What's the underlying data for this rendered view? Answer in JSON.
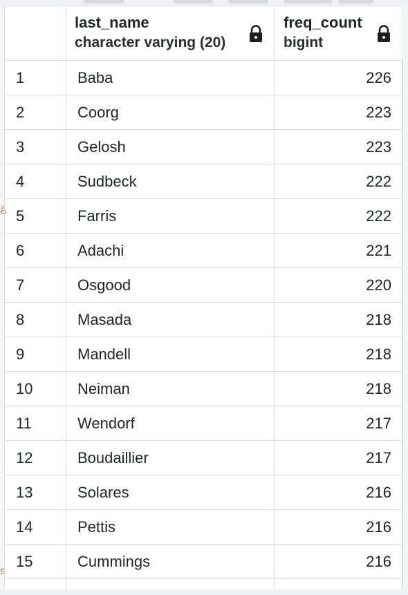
{
  "columns": [
    {
      "name": "",
      "type": ""
    },
    {
      "name": "last_name",
      "type": "character varying (20)",
      "icon": "lock-icon"
    },
    {
      "name": "freq_count",
      "type": "bigint",
      "icon": "lock-icon"
    }
  ],
  "rows": [
    {
      "idx": "1",
      "last_name": "Baba",
      "freq_count": "226"
    },
    {
      "idx": "2",
      "last_name": "Coorg",
      "freq_count": "223"
    },
    {
      "idx": "3",
      "last_name": "Gelosh",
      "freq_count": "223"
    },
    {
      "idx": "4",
      "last_name": "Sudbeck",
      "freq_count": "222"
    },
    {
      "idx": "5",
      "last_name": "Farris",
      "freq_count": "222"
    },
    {
      "idx": "6",
      "last_name": "Adachi",
      "freq_count": "221"
    },
    {
      "idx": "7",
      "last_name": "Osgood",
      "freq_count": "220"
    },
    {
      "idx": "8",
      "last_name": "Masada",
      "freq_count": "218"
    },
    {
      "idx": "9",
      "last_name": "Mandell",
      "freq_count": "218"
    },
    {
      "idx": "10",
      "last_name": "Neiman",
      "freq_count": "218"
    },
    {
      "idx": "11",
      "last_name": "Wendorf",
      "freq_count": "217"
    },
    {
      "idx": "12",
      "last_name": "Boudaillier",
      "freq_count": "217"
    },
    {
      "idx": "13",
      "last_name": "Solares",
      "freq_count": "216"
    },
    {
      "idx": "14",
      "last_name": "Pettis",
      "freq_count": "216"
    },
    {
      "idx": "15",
      "last_name": "Cummings",
      "freq_count": "216"
    }
  ],
  "colors": {
    "grid_line": "#dadde1",
    "text": "#222428",
    "lock": "#1e1f22"
  }
}
